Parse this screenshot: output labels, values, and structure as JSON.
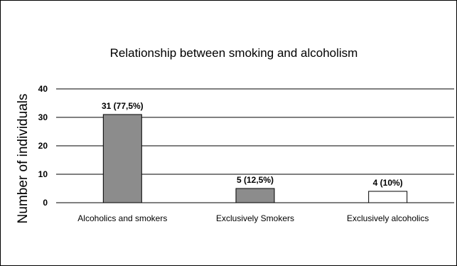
{
  "chart_data": {
    "type": "bar",
    "title": "Relationship between smoking and alcoholism",
    "xlabel": "",
    "ylabel": "Number of individuals",
    "categories": [
      "Alcoholics and smokers",
      "Exclusively Smokers",
      "Exclusively alcoholics"
    ],
    "values": [
      31,
      5,
      4
    ],
    "data_labels": [
      "31 (77,5%)",
      "5 (12,5%)",
      "4 (10%)"
    ],
    "bar_colors": [
      "#8c8c8c",
      "#8c8c8c",
      "#ffffff"
    ],
    "ylim": [
      0,
      40
    ],
    "yticks": [
      0,
      10,
      20,
      30,
      40
    ],
    "grid": true,
    "legend": "none"
  }
}
